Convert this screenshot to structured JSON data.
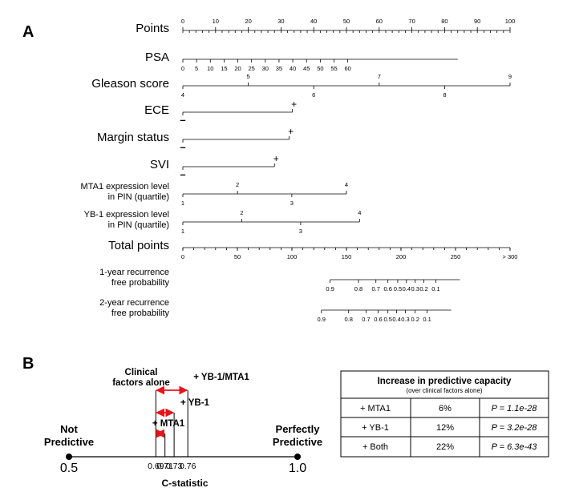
{
  "panel_a_label": "A",
  "panel_b_label": "B",
  "chart_data": [
    {
      "type": "nomogram",
      "rows": [
        {
          "label": [
            "Points"
          ],
          "ticks_above": [
            {
              "v": 0,
              "t": "0"
            },
            {
              "v": 10,
              "t": "10"
            },
            {
              "v": 20,
              "t": "20"
            },
            {
              "v": 30,
              "t": "30"
            },
            {
              "v": 40,
              "t": "40"
            },
            {
              "v": 50,
              "t": "50"
            },
            {
              "v": 60,
              "t": "60"
            },
            {
              "v": 70,
              "t": "70"
            },
            {
              "v": 80,
              "t": "80"
            },
            {
              "v": 90,
              "t": "90"
            },
            {
              "v": 100,
              "t": "100"
            }
          ],
          "range": [
            0,
            100
          ],
          "minor_step": 2
        },
        {
          "label": [
            "PSA"
          ],
          "ticks_below": [
            {
              "v": 0,
              "t": "0"
            },
            {
              "v": 4.2,
              "t": "5"
            },
            {
              "v": 8.4,
              "t": "10"
            },
            {
              "v": 12.6,
              "t": "15"
            },
            {
              "v": 16.8,
              "t": "20"
            },
            {
              "v": 21,
              "t": "25"
            },
            {
              "v": 25.2,
              "t": "30"
            },
            {
              "v": 29.4,
              "t": "35"
            },
            {
              "v": 33.6,
              "t": "40"
            },
            {
              "v": 37.8,
              "t": "45"
            },
            {
              "v": 42,
              "t": "50"
            },
            {
              "v": 46.2,
              "t": "55"
            },
            {
              "v": 50.4,
              "t": "60"
            }
          ],
          "range": [
            0,
            84
          ]
        },
        {
          "label": [
            "Gleason score"
          ],
          "ticks_above": [
            {
              "v": 20,
              "t": "5"
            },
            {
              "v": 60,
              "t": "7"
            },
            {
              "v": 100,
              "t": "9"
            }
          ],
          "ticks_below": [
            {
              "v": 0,
              "t": "4"
            },
            {
              "v": 40,
              "t": "6"
            },
            {
              "v": 80,
              "t": "8"
            }
          ],
          "range": [
            0,
            100
          ]
        },
        {
          "label": [
            "ECE"
          ],
          "plus_at": 33.5,
          "minus": "–",
          "plus": "+",
          "range": [
            0,
            33.5
          ]
        },
        {
          "label": [
            "Margin status"
          ],
          "plus_at": 32.5,
          "minus": "–",
          "plus": "+",
          "range": [
            0,
            32.5
          ]
        },
        {
          "label": [
            "SVI"
          ],
          "plus_at": 28,
          "minus": "–",
          "plus": "+",
          "range": [
            0,
            28
          ]
        },
        {
          "label": [
            "MTA1  expression level",
            "in PIN (quartile)"
          ],
          "ticks_above": [
            {
              "v": 16.7,
              "t": "2"
            },
            {
              "v": 50,
              "t": "4"
            }
          ],
          "ticks_below": [
            {
              "v": 0,
              "t": "1"
            },
            {
              "v": 33.3,
              "t": "3"
            }
          ],
          "range": [
            0,
            50
          ]
        },
        {
          "label": [
            "YB-1  expression level",
            "in PIN (quartile)"
          ],
          "ticks_above": [
            {
              "v": 18,
              "t": "2"
            },
            {
              "v": 54,
              "t": "4"
            }
          ],
          "ticks_below": [
            {
              "v": 0,
              "t": "1"
            },
            {
              "v": 36,
              "t": "3"
            }
          ],
          "range": [
            0,
            54
          ]
        },
        {
          "label": [
            "Total points"
          ],
          "ticks_below": [
            {
              "v": 0,
              "t": "0"
            },
            {
              "v": 50,
              "t": "50"
            },
            {
              "v": 100,
              "t": "100"
            },
            {
              "v": 150,
              "t": "150"
            },
            {
              "v": 200,
              "t": "200"
            },
            {
              "v": 250,
              "t": "250"
            },
            {
              "v": 300,
              "t": "> 300"
            }
          ],
          "range": [
            0,
            300
          ],
          "minor_step": 10,
          "scale_max": 300
        },
        {
          "label": [
            "1-year recurrence",
            "free probability"
          ],
          "ticks_below": [
            {
              "v": 135,
              "t": "0.9"
            },
            {
              "v": 161,
              "t": "0.8"
            },
            {
              "v": 177,
              "t": "0.7"
            },
            {
              "v": 188,
              "t": "0.6"
            },
            {
              "v": 197,
              "t": "0.5"
            },
            {
              "v": 205,
              "t": "0.4"
            },
            {
              "v": 213,
              "t": "0.3"
            },
            {
              "v": 221,
              "t": "0.2"
            },
            {
              "v": 232,
              "t": "0.1"
            }
          ],
          "range": [
            135,
            254
          ],
          "scale_max": 300
        },
        {
          "label": [
            "2-year recurrence",
            "free probability"
          ],
          "ticks_below": [
            {
              "v": 127,
              "t": "0.9"
            },
            {
              "v": 152,
              "t": "0.8"
            },
            {
              "v": 168,
              "t": "0.7"
            },
            {
              "v": 179,
              "t": "0.6"
            },
            {
              "v": 188,
              "t": "0.5"
            },
            {
              "v": 196,
              "t": "0.4"
            },
            {
              "v": 204,
              "t": "0.3"
            },
            {
              "v": 213,
              "t": "0.2"
            },
            {
              "v": 224,
              "t": "0.1"
            }
          ],
          "range": [
            127,
            246
          ],
          "scale_max": 300
        }
      ]
    },
    {
      "type": "c-statistic-scale",
      "xlabel": "C-statistic",
      "xlim": [
        0.5,
        1.0
      ],
      "end_labels": {
        "left": [
          "Not",
          "Predictive"
        ],
        "right": [
          "Perfectly",
          "Predictive"
        ],
        "left_value": "0.5",
        "right_value": "1.0"
      },
      "baseline": {
        "value": 0.69,
        "label": [
          "Clinical",
          "factors alone"
        ]
      },
      "models": [
        {
          "name": "+ MTA1",
          "value": 0.71
        },
        {
          "name": "+ YB-1",
          "value": 0.73
        },
        {
          "name": "+ YB-1/MTA1",
          "value": 0.76
        }
      ],
      "tick_values": [
        {
          "v": 0.69,
          "t": "0.69"
        },
        {
          "v": 0.71,
          "t": "0.71"
        },
        {
          "v": 0.73,
          "t": "0.73"
        },
        {
          "v": 0.76,
          "t": "0.76"
        }
      ],
      "arrow_color": "#e8141b"
    }
  ],
  "table": {
    "title": "Increase in predictive capacity",
    "subtitle": "(over clinical factors alone)",
    "rows": [
      {
        "model": "+ MTA1",
        "increase": "6%",
        "p": "P = 1.1e-28"
      },
      {
        "model": "+ YB-1",
        "increase": "12%",
        "p": "P = 3.2e-28"
      },
      {
        "model": "+ Both",
        "increase": "22%",
        "p": "P = 6.3e-43"
      }
    ]
  }
}
